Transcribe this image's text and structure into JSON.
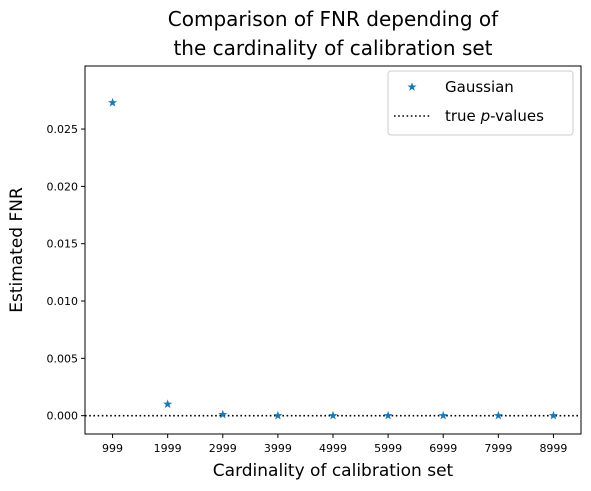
{
  "chart_data": {
    "type": "scatter",
    "title_line1": "Comparison of FNR depending of",
    "title_line2": "the cardinality of calibration set",
    "xlabel": "Cardinality of calibration set",
    "ylabel": "Estimated FNR",
    "categories": [
      "999",
      "1999",
      "2999",
      "3999",
      "4999",
      "5999",
      "6999",
      "7999",
      "8999"
    ],
    "yticks": [
      0.0,
      0.005,
      0.01,
      0.015,
      0.02,
      0.025
    ],
    "ytick_labels": [
      "0.000",
      "0.005",
      "0.010",
      "0.015",
      "0.020",
      "0.025"
    ],
    "ylim": [
      -0.0016,
      0.0305
    ],
    "series": [
      {
        "name": "Gaussian",
        "marker": "star",
        "color": "#1f77b4",
        "values": [
          0.0273,
          0.001,
          0.0001,
          0.0,
          0.0,
          0.0,
          0.0,
          0.0,
          0.0
        ]
      }
    ],
    "reference_line": {
      "label_prefix": "true ",
      "label_italic": "p",
      "label_suffix": "-values",
      "value": 0.0,
      "style": "dotted",
      "color": "#000000"
    },
    "legend_position": "top-right",
    "grid": false
  }
}
